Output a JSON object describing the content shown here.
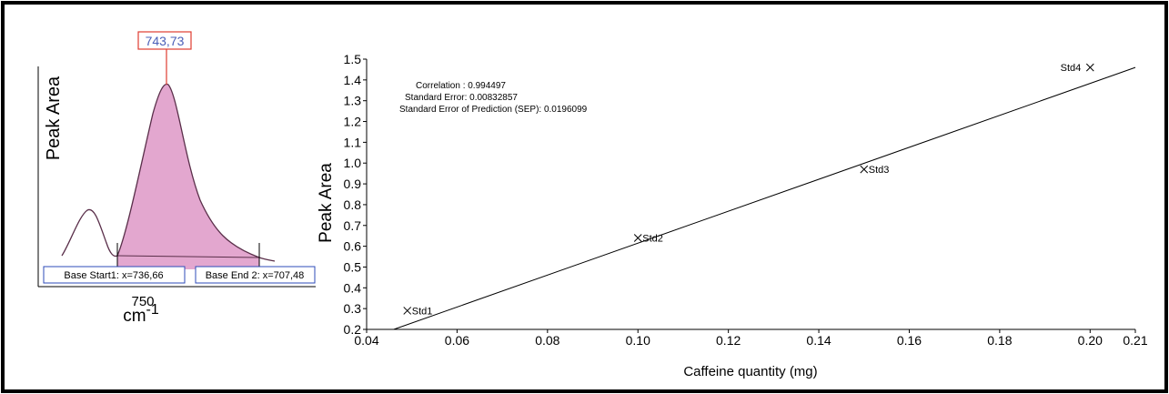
{
  "chart_data": [
    {
      "type": "line",
      "peak_label": "743,73",
      "ylabel": "Peak Area",
      "xtick": "750",
      "xunit": "cm",
      "xunit_exp": "-1",
      "base_start_label": "Base Start1: x=736,66",
      "base_end_label": "Base End 2: x=707,48",
      "colors": {
        "fill": "#e3a7cf",
        "curve": "#5a2f4a",
        "marker": "#e03c31",
        "label_box": "#2d4bb8",
        "label_text": "#4a5fb8"
      }
    },
    {
      "type": "scatter",
      "xlabel": "Caffeine quantity (mg)",
      "ylabel": "Peak Area",
      "xlim": [
        0.04,
        0.21
      ],
      "ylim": [
        0.2,
        1.5
      ],
      "xticks": [
        "0.04",
        "0.06",
        "0.08",
        "0.10",
        "0.12",
        "0.14",
        "0.16",
        "0.18",
        "0.20",
        "0.21"
      ],
      "yticks": [
        "0.2",
        "0.3",
        "0.4",
        "0.5",
        "0.6",
        "0.7",
        "0.8",
        "0.9",
        "1.0",
        "1.1",
        "1.2",
        "1.3",
        "1.4",
        "1.5"
      ],
      "points": [
        {
          "label": "Std1",
          "x": 0.049,
          "y": 0.29
        },
        {
          "label": "Std2",
          "x": 0.1,
          "y": 0.64
        },
        {
          "label": "Std3",
          "x": 0.15,
          "y": 0.97
        },
        {
          "label": "Std4",
          "x": 0.2,
          "y": 1.46
        }
      ],
      "fit_line": [
        {
          "x": 0.046,
          "y": 0.2
        },
        {
          "x": 0.21,
          "y": 1.46
        }
      ],
      "annotations": [
        "Correlation : 0.994497",
        "Standard Error: 0.00832857",
        "Standard Error of Prediction (SEP): 0.0196099"
      ]
    }
  ]
}
